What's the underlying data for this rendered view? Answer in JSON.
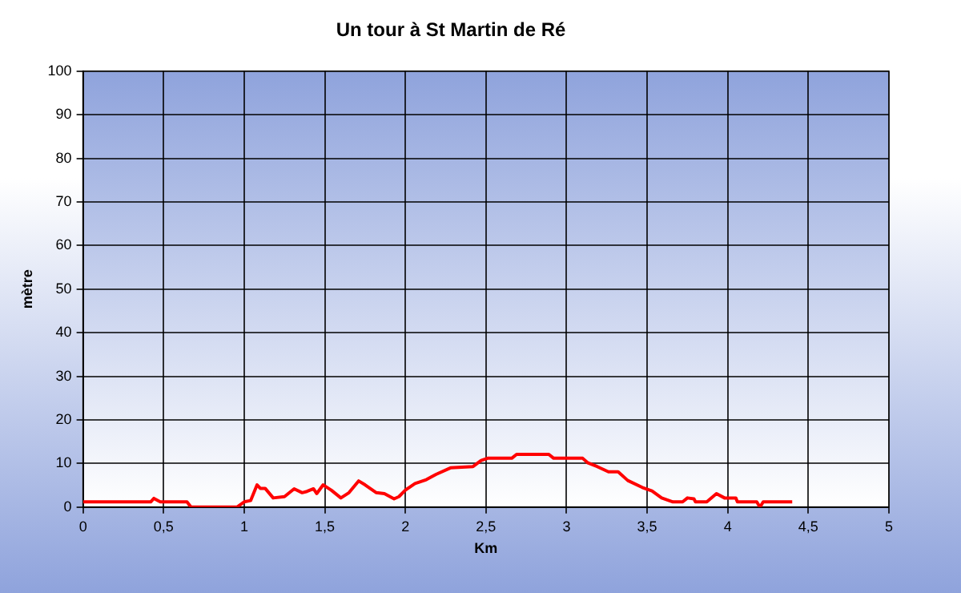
{
  "chart_data": {
    "type": "line",
    "title": "Un tour à St Martin de Ré",
    "xlabel": "Km",
    "ylabel": "mètre",
    "x": [
      0,
      0.42,
      0.44,
      0.47,
      0.48,
      0.645,
      0.67,
      0.955,
      1.0,
      1.04,
      1.08,
      1.1,
      1.13,
      1.18,
      1.25,
      1.31,
      1.36,
      1.39,
      1.43,
      1.45,
      1.49,
      1.54,
      1.6,
      1.65,
      1.71,
      1.75,
      1.82,
      1.87,
      1.93,
      1.96,
      2.0,
      2.06,
      2.13,
      2.19,
      2.28,
      2.42,
      2.47,
      2.51,
      2.66,
      2.69,
      2.89,
      2.92,
      3.1,
      3.13,
      3.19,
      3.26,
      3.32,
      3.38,
      3.47,
      3.53,
      3.59,
      3.66,
      3.72,
      3.75,
      3.79,
      3.8,
      3.87,
      3.93,
      3.98,
      4.05,
      4.06,
      4.18,
      4.2,
      4.22,
      4.4
    ],
    "series": [
      {
        "color": "#ff0000",
        "values": [
          1.2,
          1.2,
          2,
          1.4,
          1.2,
          1.2,
          0,
          0,
          1.2,
          1.5,
          5.1,
          4.3,
          4.3,
          2.1,
          2.4,
          4.2,
          3.3,
          3.6,
          4.2,
          3.1,
          5.1,
          3.9,
          2.1,
          3.3,
          6,
          5.1,
          3.3,
          3.1,
          1.9,
          2.4,
          3.9,
          5.4,
          6.3,
          7.5,
          9,
          9.3,
          10.7,
          11.2,
          11.2,
          12.1,
          12.1,
          11.2,
          11.2,
          10.2,
          9.3,
          8.1,
          8.1,
          6.1,
          4.5,
          3.7,
          2.1,
          1.2,
          1.2,
          2.1,
          1.9,
          1.2,
          1.2,
          3.1,
          2.1,
          2.1,
          1.2,
          1.2,
          0,
          1.2,
          1.2
        ]
      }
    ],
    "xlim": [
      0,
      5
    ],
    "xticks": [
      0,
      {
        "value": 0.5,
        "label": "0,5"
      },
      1,
      {
        "value": 1.5,
        "label": "1,5"
      },
      2,
      {
        "value": 2.5,
        "label": "2,5"
      },
      3,
      {
        "value": 3.5,
        "label": "3,5"
      },
      4,
      {
        "value": 4.5,
        "label": "4,5"
      },
      5
    ],
    "ylim": [
      0,
      100
    ],
    "yticks": [
      0,
      10,
      20,
      30,
      40,
      50,
      60,
      70,
      80,
      90,
      100
    ],
    "grid": true,
    "legend": false,
    "marker": "none",
    "line_style": "solid"
  }
}
